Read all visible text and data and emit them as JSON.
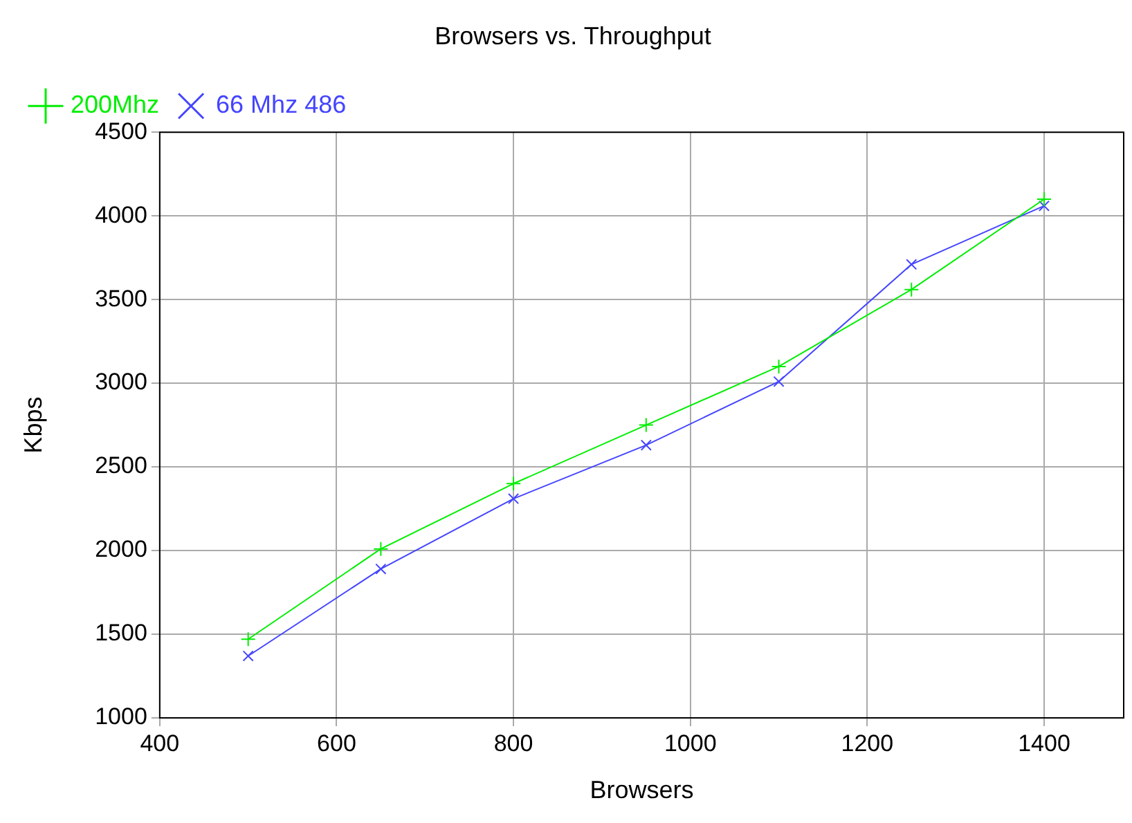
{
  "chart_data": {
    "type": "line",
    "title": "Browsers vs. Throughput",
    "xlabel": "Browsers",
    "ylabel": "Kbps",
    "x": [
      500,
      650,
      800,
      950,
      1100,
      1250,
      1400
    ],
    "series": [
      {
        "name": "200Mhz",
        "color": "#00ee00",
        "marker": "cross",
        "values": [
          1470,
          2010,
          2400,
          2750,
          3100,
          3560,
          4100
        ]
      },
      {
        "name": "66 Mhz 486",
        "color": "#4444ff",
        "marker": "x",
        "values": [
          1370,
          1890,
          2310,
          2630,
          3010,
          3710,
          4060
        ]
      }
    ],
    "xlim": [
      400,
      1490
    ],
    "xticks": [
      400,
      600,
      800,
      1000,
      1200,
      1400
    ],
    "ylim": [
      1000,
      4500
    ],
    "yticks": [
      1000,
      1500,
      2000,
      2500,
      3000,
      3500,
      4000,
      4500
    ],
    "grid": true,
    "legend": "top left",
    "line_style": "solid"
  }
}
